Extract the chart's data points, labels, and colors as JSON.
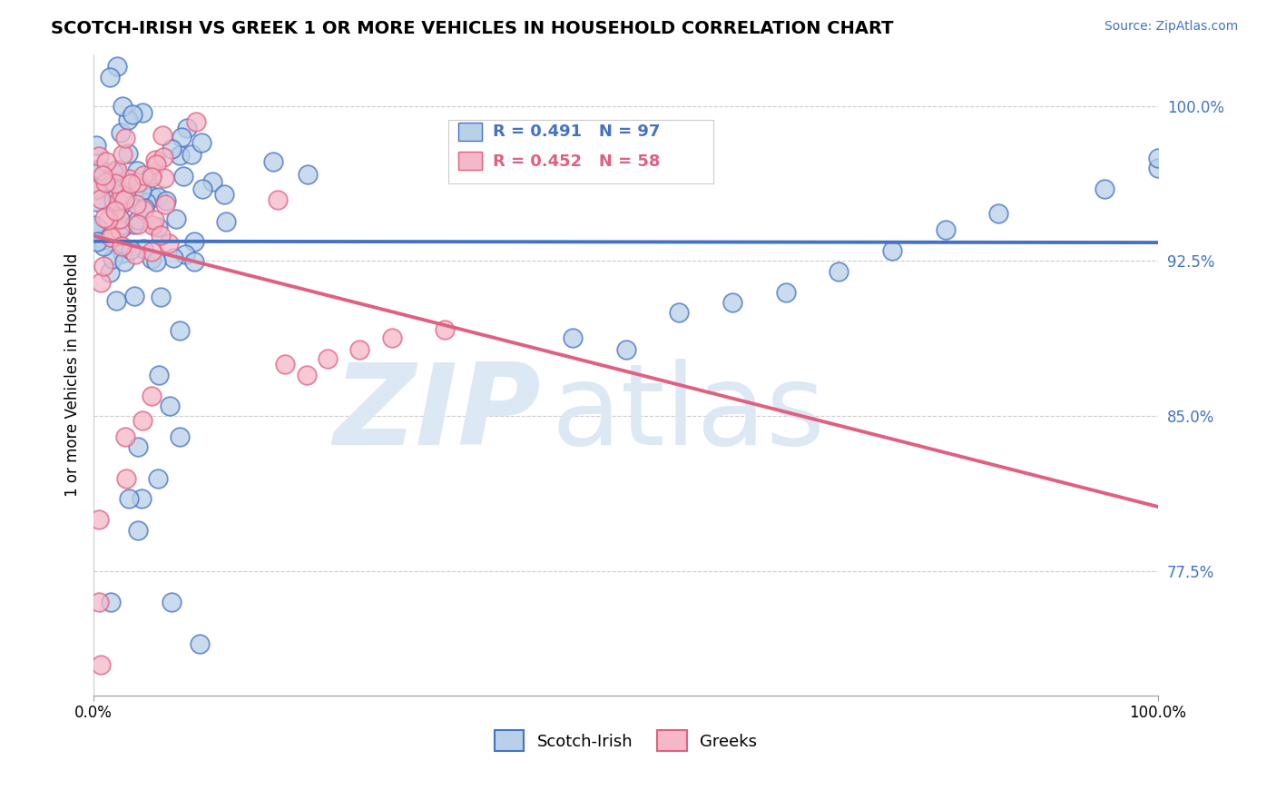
{
  "title": "SCOTCH-IRISH VS GREEK 1 OR MORE VEHICLES IN HOUSEHOLD CORRELATION CHART",
  "source": "Source: ZipAtlas.com",
  "ylabel": "1 or more Vehicles in Household",
  "xlim": [
    0.0,
    1.0
  ],
  "ylim": [
    0.715,
    1.025
  ],
  "yticks": [
    0.775,
    0.85,
    0.925,
    1.0
  ],
  "ytick_labels": [
    "77.5%",
    "85.0%",
    "92.5%",
    "100.0%"
  ],
  "xtick_labels": [
    "0.0%",
    "100.0%"
  ],
  "legend_scotch_irish": "Scotch-Irish",
  "legend_greeks": "Greeks",
  "R_scotch": 0.491,
  "N_scotch": 97,
  "R_greek": 0.452,
  "N_greek": 58,
  "color_scotch": "#b8d0e8",
  "color_greek": "#f4b8c8",
  "line_color_scotch": "#4472c4",
  "line_color_greek": "#e06080",
  "watermark_z": "ZIP",
  "watermark_a": "atlas",
  "watermark_color": "#dce8f4"
}
